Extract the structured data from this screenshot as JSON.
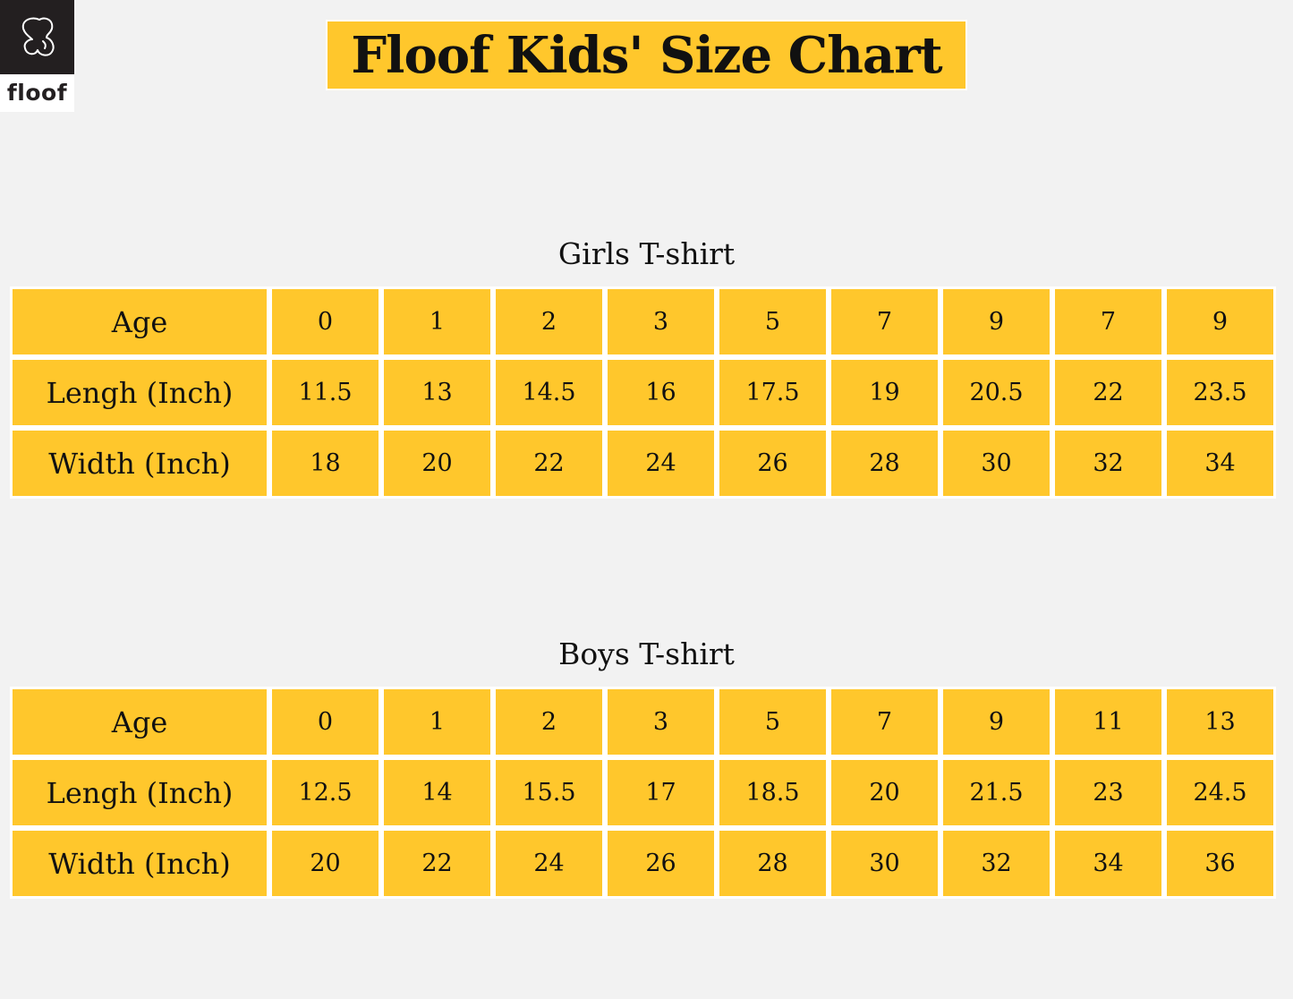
{
  "brand": {
    "name": "floof",
    "logo_icon": "dog-outline-icon"
  },
  "title": "Floof Kids' Size Chart",
  "colors": {
    "accent": "#ffc72c",
    "background": "#f2f2f2",
    "logo_bg": "#231f20"
  },
  "girls": {
    "title": "Girls T-shirt",
    "rows": [
      {
        "label": "Age",
        "values": [
          "0",
          "1",
          "2",
          "3",
          "5",
          "7",
          "9",
          "7",
          "9"
        ]
      },
      {
        "label": "Lengh (Inch)",
        "values": [
          "11.5",
          "13",
          "14.5",
          "16",
          "17.5",
          "19",
          "20.5",
          "22",
          "23.5"
        ]
      },
      {
        "label": "Width (Inch)",
        "values": [
          "18",
          "20",
          "22",
          "24",
          "26",
          "28",
          "30",
          "32",
          "34"
        ]
      }
    ]
  },
  "boys": {
    "title": "Boys T-shirt",
    "rows": [
      {
        "label": "Age",
        "values": [
          "0",
          "1",
          "2",
          "3",
          "5",
          "7",
          "9",
          "11",
          "13"
        ]
      },
      {
        "label": "Lengh (Inch)",
        "values": [
          "12.5",
          "14",
          "15.5",
          "17",
          "18.5",
          "20",
          "21.5",
          "23",
          "24.5"
        ]
      },
      {
        "label": "Width (Inch)",
        "values": [
          "20",
          "22",
          "24",
          "26",
          "28",
          "30",
          "32",
          "34",
          "36"
        ]
      }
    ]
  }
}
